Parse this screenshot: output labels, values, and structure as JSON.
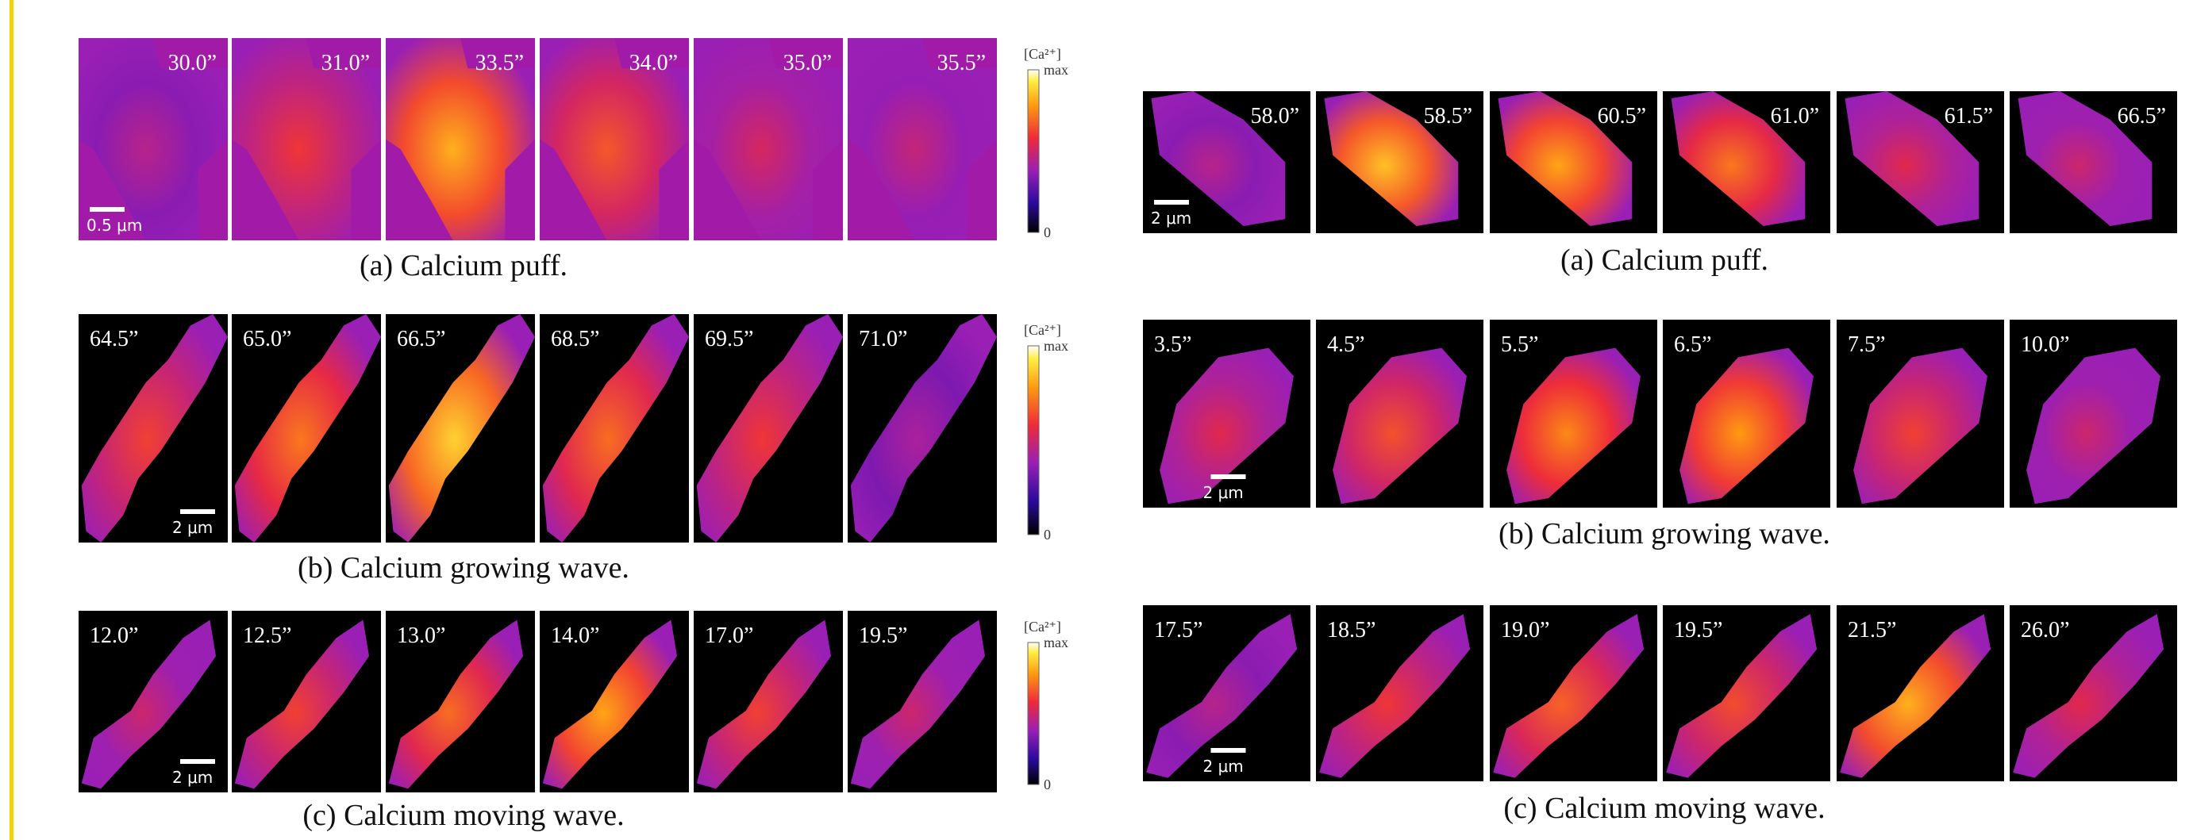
{
  "left": {
    "rows": [
      {
        "times": [
          "30.0”",
          "31.0”",
          "33.5”",
          "34.0”",
          "35.0”",
          "35.5”"
        ],
        "scale": "0.5 μm",
        "caption": "(a)  Calcium puff.",
        "colorbar": {
          "label": "[Ca²⁺]",
          "max": "max",
          "min": "0"
        }
      },
      {
        "times": [
          "64.5”",
          "65.0”",
          "66.5”",
          "68.5”",
          "69.5”",
          "71.0”"
        ],
        "scale": "2 μm",
        "caption": "(b)  Calcium growing wave.",
        "colorbar": {
          "label": "[Ca²⁺]",
          "max": "max",
          "min": "0"
        }
      },
      {
        "times": [
          "12.0”",
          "12.5”",
          "13.0”",
          "14.0”",
          "17.0”",
          "19.5”"
        ],
        "scale": "2 μm",
        "caption": "(c)  Calcium moving wave.",
        "colorbar": {
          "label": "[Ca²⁺]",
          "max": "max",
          "min": "0"
        }
      }
    ]
  },
  "right": {
    "rows": [
      {
        "times": [
          "58.0”",
          "58.5”",
          "60.5”",
          "61.0”",
          "61.5”",
          "66.5”"
        ],
        "scale": "2 μm",
        "caption": "(a)  Calcium puff."
      },
      {
        "times": [
          "3.5”",
          "4.5”",
          "5.5”",
          "6.5”",
          "7.5”",
          "10.0”"
        ],
        "scale": "2 μm",
        "caption": "(b)  Calcium growing wave."
      },
      {
        "times": [
          "17.5”",
          "18.5”",
          "19.0”",
          "19.5”",
          "21.5”",
          "26.0”"
        ],
        "scale": "2 μm",
        "caption": "(c)  Calcium moving wave."
      }
    ]
  }
}
